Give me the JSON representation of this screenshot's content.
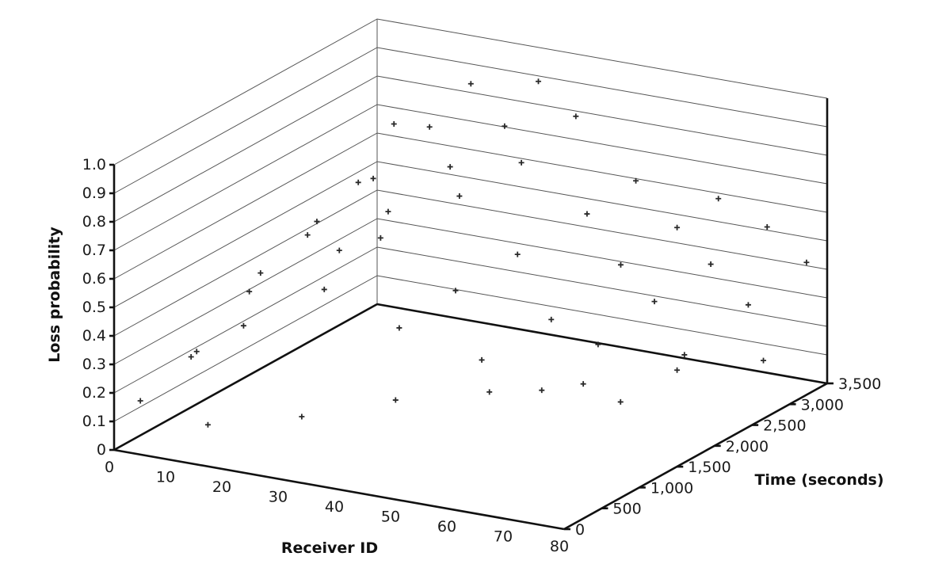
{
  "chart_data": {
    "type": "scatter",
    "projection": "3d",
    "xlabel": "Receiver ID",
    "ylabel": "Time (seconds)",
    "zlabel": "Loss probability",
    "xlim": [
      0,
      80
    ],
    "ylim": [
      0,
      3500
    ],
    "zlim": [
      0,
      1.0
    ],
    "x_ticks": [
      "0",
      "10",
      "20",
      "30",
      "40",
      "50",
      "60",
      "70",
      "80"
    ],
    "y_ticks": [
      "0",
      "500",
      "1,000",
      "1,500",
      "2,000",
      "2,500",
      "3,000",
      "3,500"
    ],
    "z_ticks": [
      "0",
      "0.1",
      "0.2",
      "0.3",
      "0.4",
      "0.5",
      "0.6",
      "0.7",
      "0.8",
      "0.9",
      "1.0"
    ],
    "grid": true,
    "marker_color": "#2a2a2a",
    "series": [
      {
        "points": [
          [
            2,
            200,
            0.15
          ],
          [
            3,
            800,
            0.22
          ],
          [
            4,
            1500,
            0.35
          ],
          [
            5,
            2200,
            0.45
          ],
          [
            6,
            2800,
            0.55
          ],
          [
            7,
            3200,
            0.7
          ],
          [
            8,
            500,
            0.3
          ],
          [
            10,
            1200,
            0.48
          ],
          [
            12,
            1800,
            0.58
          ],
          [
            14,
            2400,
            0.65
          ],
          [
            16,
            3000,
            0.75
          ],
          [
            18,
            3400,
            0.85
          ],
          [
            15,
            600,
            0.4
          ],
          [
            20,
            1500,
            0.55
          ],
          [
            22,
            2000,
            0.62
          ],
          [
            25,
            2600,
            0.7
          ],
          [
            28,
            3100,
            0.78
          ],
          [
            30,
            3400,
            0.9
          ],
          [
            24,
            1000,
            0.5
          ],
          [
            26,
            1600,
            0.6
          ],
          [
            32,
            2200,
            0.68
          ],
          [
            35,
            2800,
            0.72
          ],
          [
            38,
            3300,
            0.82
          ],
          [
            40,
            800,
            0.45
          ],
          [
            42,
            1400,
            0.5
          ],
          [
            45,
            2000,
            0.55
          ],
          [
            48,
            2700,
            0.6
          ],
          [
            50,
            3200,
            0.65
          ],
          [
            52,
            1000,
            0.35
          ],
          [
            55,
            1700,
            0.4
          ],
          [
            58,
            2400,
            0.5
          ],
          [
            60,
            3000,
            0.55
          ],
          [
            62,
            3400,
            0.6
          ],
          [
            64,
            900,
            0.3
          ],
          [
            66,
            1500,
            0.38
          ],
          [
            68,
            2100,
            0.45
          ],
          [
            70,
            2700,
            0.5
          ],
          [
            72,
            3300,
            0.55
          ],
          [
            74,
            1200,
            0.25
          ],
          [
            76,
            1900,
            0.32
          ],
          [
            78,
            2600,
            0.4
          ],
          [
            79,
            3300,
            0.45
          ],
          [
            10,
            500,
            0.05
          ],
          [
            20,
            1000,
            0.04
          ],
          [
            30,
            1500,
            0.06
          ],
          [
            40,
            2000,
            0.05
          ],
          [
            50,
            2500,
            0.04
          ],
          [
            60,
            3000,
            0.05
          ],
          [
            70,
            3400,
            0.06
          ]
        ]
      }
    ]
  }
}
